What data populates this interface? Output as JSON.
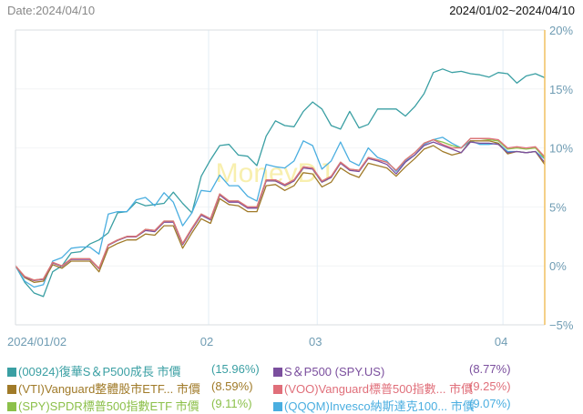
{
  "header": {
    "date_label": "Date:2024/04/10",
    "range_label": "2024/01/02~2024/04/10"
  },
  "watermark": "MoneyDJ",
  "chart_data": {
    "type": "line",
    "title": "",
    "xlabel": "",
    "ylabel": "",
    "ylim": [
      -5,
      20
    ],
    "yticks": [
      20,
      15,
      10,
      5,
      0,
      -5
    ],
    "ytick_labels": [
      "20%",
      "15%",
      "10%",
      "5%",
      "0%",
      "−5%"
    ],
    "xtick_labels": [
      {
        "label": "2024/01/02",
        "index": 0
      },
      {
        "label": "02",
        "index": 20.8
      },
      {
        "label": "03",
        "index": 32.5
      },
      {
        "label": "04",
        "index": 52.5
      }
    ],
    "n_points": 58,
    "series": [
      {
        "name": "(00924)復華S＆P500成長 市價",
        "pct_label": "(15.96%)",
        "color": "#3a9fa3",
        "values": [
          0,
          -1.4,
          -2.3,
          -2.6,
          -0.5,
          0,
          1.1,
          1.2,
          1.85,
          2.2,
          2.8,
          4.5,
          4.6,
          5.4,
          5.1,
          5.2,
          5.3,
          6.25,
          5.3,
          4.5,
          7.6,
          9.0,
          10.2,
          10.3,
          9.4,
          9.3,
          8.5,
          11,
          12.3,
          11.9,
          11.8,
          13.1,
          13.9,
          13.3,
          11.9,
          11.6,
          13.1,
          11.7,
          12.0,
          13.3,
          13.3,
          13.3,
          12.7,
          13.5,
          14.6,
          16.4,
          16.7,
          16.4,
          16.5,
          16.3,
          16.2,
          16.0,
          16.4,
          16.3,
          15.5,
          16.1,
          16.3,
          15.96
        ]
      },
      {
        "name": "S＆P500 (SPY.US)",
        "pct_label": "(8.77%)",
        "color": "#7b4f9e",
        "values": [
          0,
          -0.95,
          -1.25,
          -1.15,
          0.25,
          -0.05,
          0.55,
          0.55,
          0.55,
          -0.25,
          1.75,
          2.15,
          2.45,
          2.45,
          3.0,
          2.9,
          3.7,
          3.7,
          1.8,
          3.1,
          4.3,
          3.9,
          6.0,
          5.4,
          5.4,
          4.9,
          4.9,
          7.2,
          7.2,
          6.8,
          7.2,
          8.3,
          8.2,
          7.1,
          7.5,
          8.7,
          8.1,
          8.0,
          9.1,
          8.9,
          8.6,
          7.8,
          8.8,
          9.4,
          10.2,
          10.5,
          10.2,
          9.9,
          9.6,
          10.5,
          10.4,
          10.4,
          10.3,
          9.6,
          9.7,
          9.6,
          9.7,
          8.77
        ]
      },
      {
        "name": "(VTI)Vanguard整體股市ETF... 市價",
        "pct_label": "(8.59%)",
        "color": "#a07a28",
        "values": [
          0,
          -1.0,
          -1.4,
          -1.3,
          0.1,
          -0.2,
          0.4,
          0.4,
          0.4,
          -0.5,
          1.5,
          1.9,
          2.2,
          2.2,
          2.7,
          2.6,
          3.4,
          3.4,
          1.5,
          2.8,
          4.0,
          3.6,
          5.7,
          5.2,
          5.1,
          4.6,
          4.6,
          6.8,
          6.9,
          6.4,
          6.8,
          7.9,
          7.8,
          6.7,
          7.1,
          8.3,
          7.8,
          7.5,
          8.7,
          8.5,
          8.3,
          7.6,
          8.4,
          9.1,
          9.9,
          10.2,
          9.7,
          9.4,
          9.6,
          10.6,
          10.6,
          10.6,
          10.4,
          9.5,
          9.7,
          9.6,
          9.7,
          8.59
        ]
      },
      {
        "name": "(VOO)Vanguard標普500指數... 市價",
        "pct_label": "(9.25%)",
        "color": "#e06f7a",
        "values": [
          0,
          -0.9,
          -1.2,
          -1.1,
          0.3,
          0.0,
          0.6,
          0.6,
          0.6,
          -0.2,
          1.8,
          2.2,
          2.5,
          2.5,
          3.1,
          3.0,
          3.8,
          3.8,
          1.9,
          3.2,
          4.4,
          4.0,
          6.1,
          5.5,
          5.5,
          5.0,
          5.0,
          7.3,
          7.3,
          6.9,
          7.3,
          8.4,
          8.3,
          7.2,
          7.6,
          8.8,
          8.2,
          8.1,
          9.2,
          9.0,
          8.8,
          8.1,
          9.0,
          9.6,
          10.4,
          10.7,
          10.3,
          10.0,
          10.0,
          10.8,
          10.8,
          10.8,
          10.7,
          10.0,
          10.1,
          10.0,
          10.1,
          9.25
        ]
      },
      {
        "name": "(SPY)SPDR標普500指數ETF 市價",
        "pct_label": "(9.11%)",
        "color": "#8cc04a",
        "values": [
          0,
          -0.9,
          -1.2,
          -1.1,
          0.3,
          0.0,
          0.6,
          0.6,
          0.6,
          -0.2,
          1.8,
          2.2,
          2.5,
          2.5,
          3.1,
          3.0,
          3.8,
          3.8,
          1.9,
          3.2,
          4.4,
          4.0,
          6.1,
          5.5,
          5.5,
          5.0,
          5.0,
          7.3,
          7.3,
          6.9,
          7.3,
          8.4,
          8.3,
          7.2,
          7.6,
          8.8,
          8.2,
          8.1,
          9.2,
          9.0,
          8.8,
          8.1,
          9.0,
          9.6,
          10.4,
          10.7,
          10.5,
          10.2,
          10.0,
          10.8,
          10.8,
          10.7,
          10.6,
          9.9,
          10.0,
          9.9,
          10.0,
          9.11
        ]
      },
      {
        "name": "(QQQM)Invesco納斯達克100... 市價",
        "pct_label": "(9.07%)",
        "color": "#4aaee0",
        "values": [
          0,
          -1.3,
          -1.8,
          -1.6,
          0.4,
          0.7,
          1.5,
          1.6,
          1.6,
          1.0,
          4.4,
          4.6,
          4.6,
          5.6,
          5.8,
          5.1,
          6.2,
          5.4,
          3.4,
          4.5,
          6.4,
          6.3,
          7.7,
          6.8,
          6.8,
          5.9,
          5.5,
          8.6,
          8.4,
          8.3,
          8.9,
          10.6,
          10.2,
          8.2,
          8.9,
          10.5,
          8.9,
          8.5,
          10.0,
          9.2,
          8.9,
          8.0,
          8.9,
          9.4,
          10.3,
          10.7,
          10.9,
          10.4,
          10.0,
          10.6,
          10.3,
          10.3,
          10.4,
          9.7,
          9.7,
          9.6,
          9.7,
          9.07
        ]
      }
    ],
    "legend_position": "bottom",
    "grid": true
  }
}
